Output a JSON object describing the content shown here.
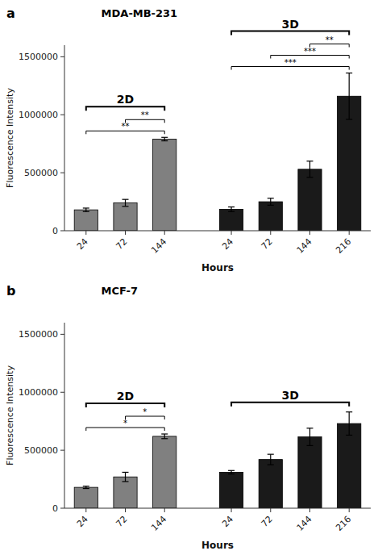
{
  "chart_data": [
    {
      "type": "bar",
      "title": "MDA-MB-231",
      "panel_label": "a",
      "xlabel": "Hours",
      "ylabel": "Fluorescence Intensity",
      "categories": [
        "24",
        "72",
        "144",
        "24",
        "72",
        "144",
        "216"
      ],
      "series": [
        {
          "name": "2D",
          "color": "#808080",
          "values": [
            180000,
            240000,
            790000,
            null,
            null,
            null,
            null
          ],
          "errors": [
            15000,
            30000,
            15000,
            null,
            null,
            null,
            null
          ]
        },
        {
          "name": "3D",
          "color": "#1a1a1a",
          "values": [
            null,
            null,
            null,
            185000,
            250000,
            530000,
            1160000
          ],
          "errors": [
            null,
            null,
            null,
            20000,
            30000,
            70000,
            200000
          ]
        }
      ],
      "ylim": [
        0,
        1600000
      ],
      "yticks": [
        0,
        500000,
        1000000,
        1500000
      ],
      "grid": false,
      "annotations": [
        {
          "text": "**",
          "from": 0,
          "to": 2
        },
        {
          "text": "**",
          "from": 1,
          "to": 2
        },
        {
          "text": "***",
          "from": 3,
          "to": 6
        },
        {
          "text": "***",
          "from": 4,
          "to": 6
        },
        {
          "text": "**",
          "from": 5,
          "to": 6
        }
      ]
    },
    {
      "type": "bar",
      "title": "MCF-7",
      "panel_label": "b",
      "xlabel": "Hours",
      "ylabel": "Fluorescence Intensity",
      "categories": [
        "24",
        "72",
        "144",
        "24",
        "72",
        "144",
        "216"
      ],
      "series": [
        {
          "name": "2D",
          "color": "#808080",
          "values": [
            180000,
            270000,
            620000,
            null,
            null,
            null,
            null
          ],
          "errors": [
            10000,
            40000,
            20000,
            null,
            null,
            null,
            null
          ]
        },
        {
          "name": "3D",
          "color": "#1a1a1a",
          "values": [
            null,
            null,
            null,
            310000,
            420000,
            615000,
            730000
          ],
          "errors": [
            null,
            null,
            null,
            15000,
            45000,
            75000,
            100000
          ]
        }
      ],
      "ylim": [
        0,
        1600000
      ],
      "yticks": [
        0,
        500000,
        1000000,
        1500000
      ],
      "grid": false,
      "annotations": [
        {
          "text": "*",
          "from": 0,
          "to": 2
        },
        {
          "text": "*",
          "from": 1,
          "to": 2
        }
      ]
    }
  ]
}
